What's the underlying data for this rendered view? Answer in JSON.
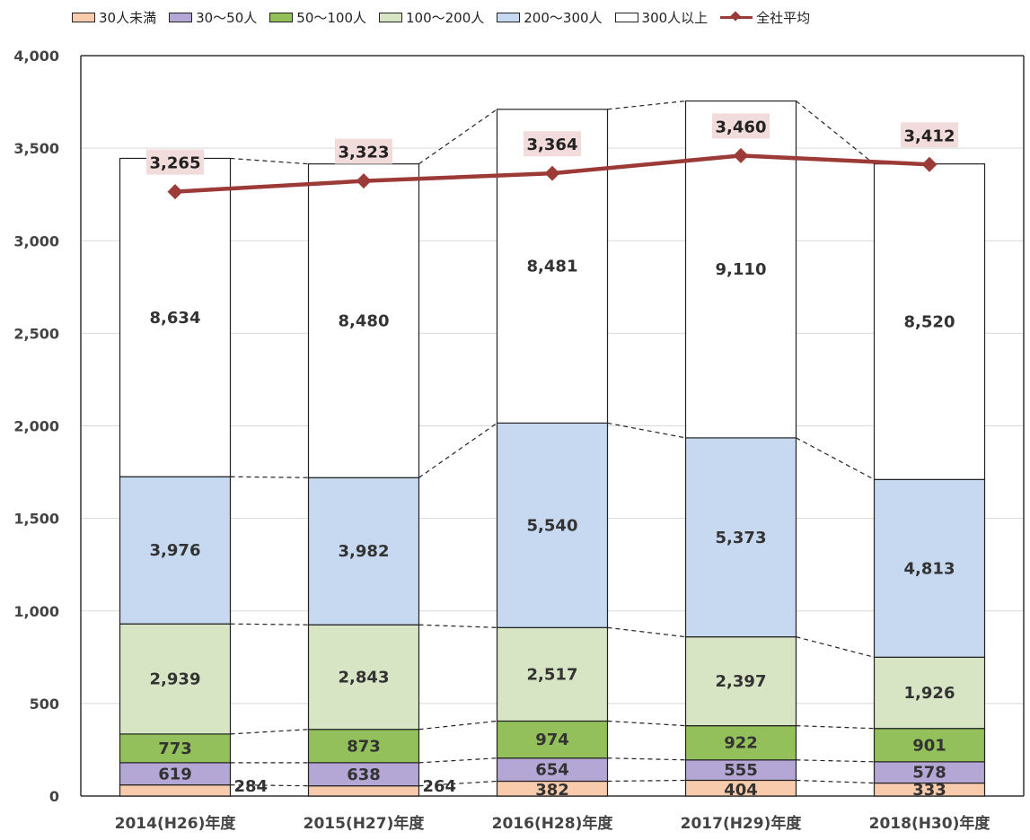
{
  "chart_data": {
    "type": "bar",
    "stacked": true,
    "categories": [
      "2014(H26)年度",
      "2015(H27)年度",
      "2016(H28)年度",
      "2017(H29)年度",
      "2018(H30)年度"
    ],
    "ylim": [
      0,
      4000
    ],
    "yticks": [
      "0",
      "500",
      "1,000",
      "1,500",
      "2,000",
      "2,500",
      "3,000",
      "3,500",
      "4,000"
    ],
    "grid": true,
    "legend_position": "top",
    "series": [
      {
        "name": "30人未満",
        "color": "#f8cbad",
        "values": [
          60,
          55,
          80,
          85,
          70
        ],
        "labels": [
          "284",
          "264",
          "382",
          "404",
          "333"
        ]
      },
      {
        "name": "30～50人",
        "color": "#b4a7d6",
        "values": [
          120,
          125,
          125,
          110,
          115
        ],
        "labels": [
          "619",
          "638",
          "654",
          "555",
          "578"
        ]
      },
      {
        "name": "50～100人",
        "color": "#93c05a",
        "values": [
          155,
          180,
          200,
          185,
          180
        ],
        "labels": [
          "773",
          "873",
          "974",
          "922",
          "901"
        ]
      },
      {
        "name": "100～200人",
        "color": "#d8e5c4",
        "values": [
          595,
          565,
          505,
          480,
          385
        ],
        "labels": [
          "2,939",
          "2,843",
          "2,517",
          "2,397",
          "1,926"
        ]
      },
      {
        "name": "200～300人",
        "color": "#c6d9f0",
        "values": [
          795,
          795,
          1105,
          1075,
          960
        ],
        "labels": [
          "3,976",
          "3,982",
          "5,540",
          "5,373",
          "4,813"
        ]
      },
      {
        "name": "300人以上",
        "color": "#ffffff",
        "values": [
          1720,
          1695,
          1695,
          1820,
          1705
        ],
        "labels": [
          "8,634",
          "8,480",
          "8,481",
          "9,110",
          "8,520"
        ]
      }
    ],
    "line_series": {
      "name": "全社平均",
      "color": "#9b3a36",
      "values": [
        3265,
        3323,
        3364,
        3460,
        3412
      ],
      "labels": [
        "3,265",
        "3,323",
        "3,364",
        "3,460",
        "3,412"
      ]
    }
  }
}
